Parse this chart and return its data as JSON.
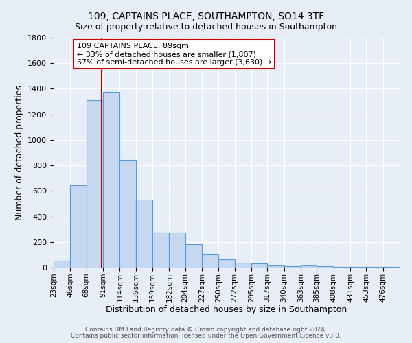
{
  "title": "109, CAPTAINS PLACE, SOUTHAMPTON, SO14 3TF",
  "subtitle": "Size of property relative to detached houses in Southampton",
  "xlabel": "Distribution of detached houses by size in Southampton",
  "ylabel": "Number of detached properties",
  "footer_line1": "Contains HM Land Registry data © Crown copyright and database right 2024.",
  "footer_line2": "Contains public sector information licensed under the Open Government Licence v3.0.",
  "bin_labels": [
    "23sqm",
    "46sqm",
    "68sqm",
    "91sqm",
    "114sqm",
    "136sqm",
    "159sqm",
    "182sqm",
    "204sqm",
    "227sqm",
    "250sqm",
    "272sqm",
    "295sqm",
    "317sqm",
    "340sqm",
    "363sqm",
    "385sqm",
    "408sqm",
    "431sqm",
    "453sqm",
    "476sqm"
  ],
  "bin_edges": [
    23,
    46,
    68,
    91,
    114,
    136,
    159,
    182,
    204,
    227,
    250,
    272,
    295,
    317,
    340,
    363,
    385,
    408,
    431,
    453,
    476,
    499
  ],
  "bar_heights": [
    55,
    645,
    1310,
    1375,
    845,
    530,
    275,
    275,
    185,
    105,
    65,
    35,
    30,
    15,
    10,
    15,
    10,
    5,
    5,
    5,
    5
  ],
  "bar_color": "#c5d8f0",
  "bar_edge_color": "#5b9bd5",
  "bg_color": "#e8eef8",
  "grid_color": "#ffffff",
  "vline_x": 89,
  "vline_color": "#cc0000",
  "annotation_text": "109 CAPTAINS PLACE: 89sqm\n← 33% of detached houses are smaller (1,807)\n67% of semi-detached houses are larger (3,630) →",
  "annotation_box_color": "#ffffff",
  "annotation_box_edge": "#cc0000",
  "ylim": [
    0,
    1800
  ],
  "yticks": [
    0,
    200,
    400,
    600,
    800,
    1000,
    1200,
    1400,
    1600,
    1800
  ]
}
